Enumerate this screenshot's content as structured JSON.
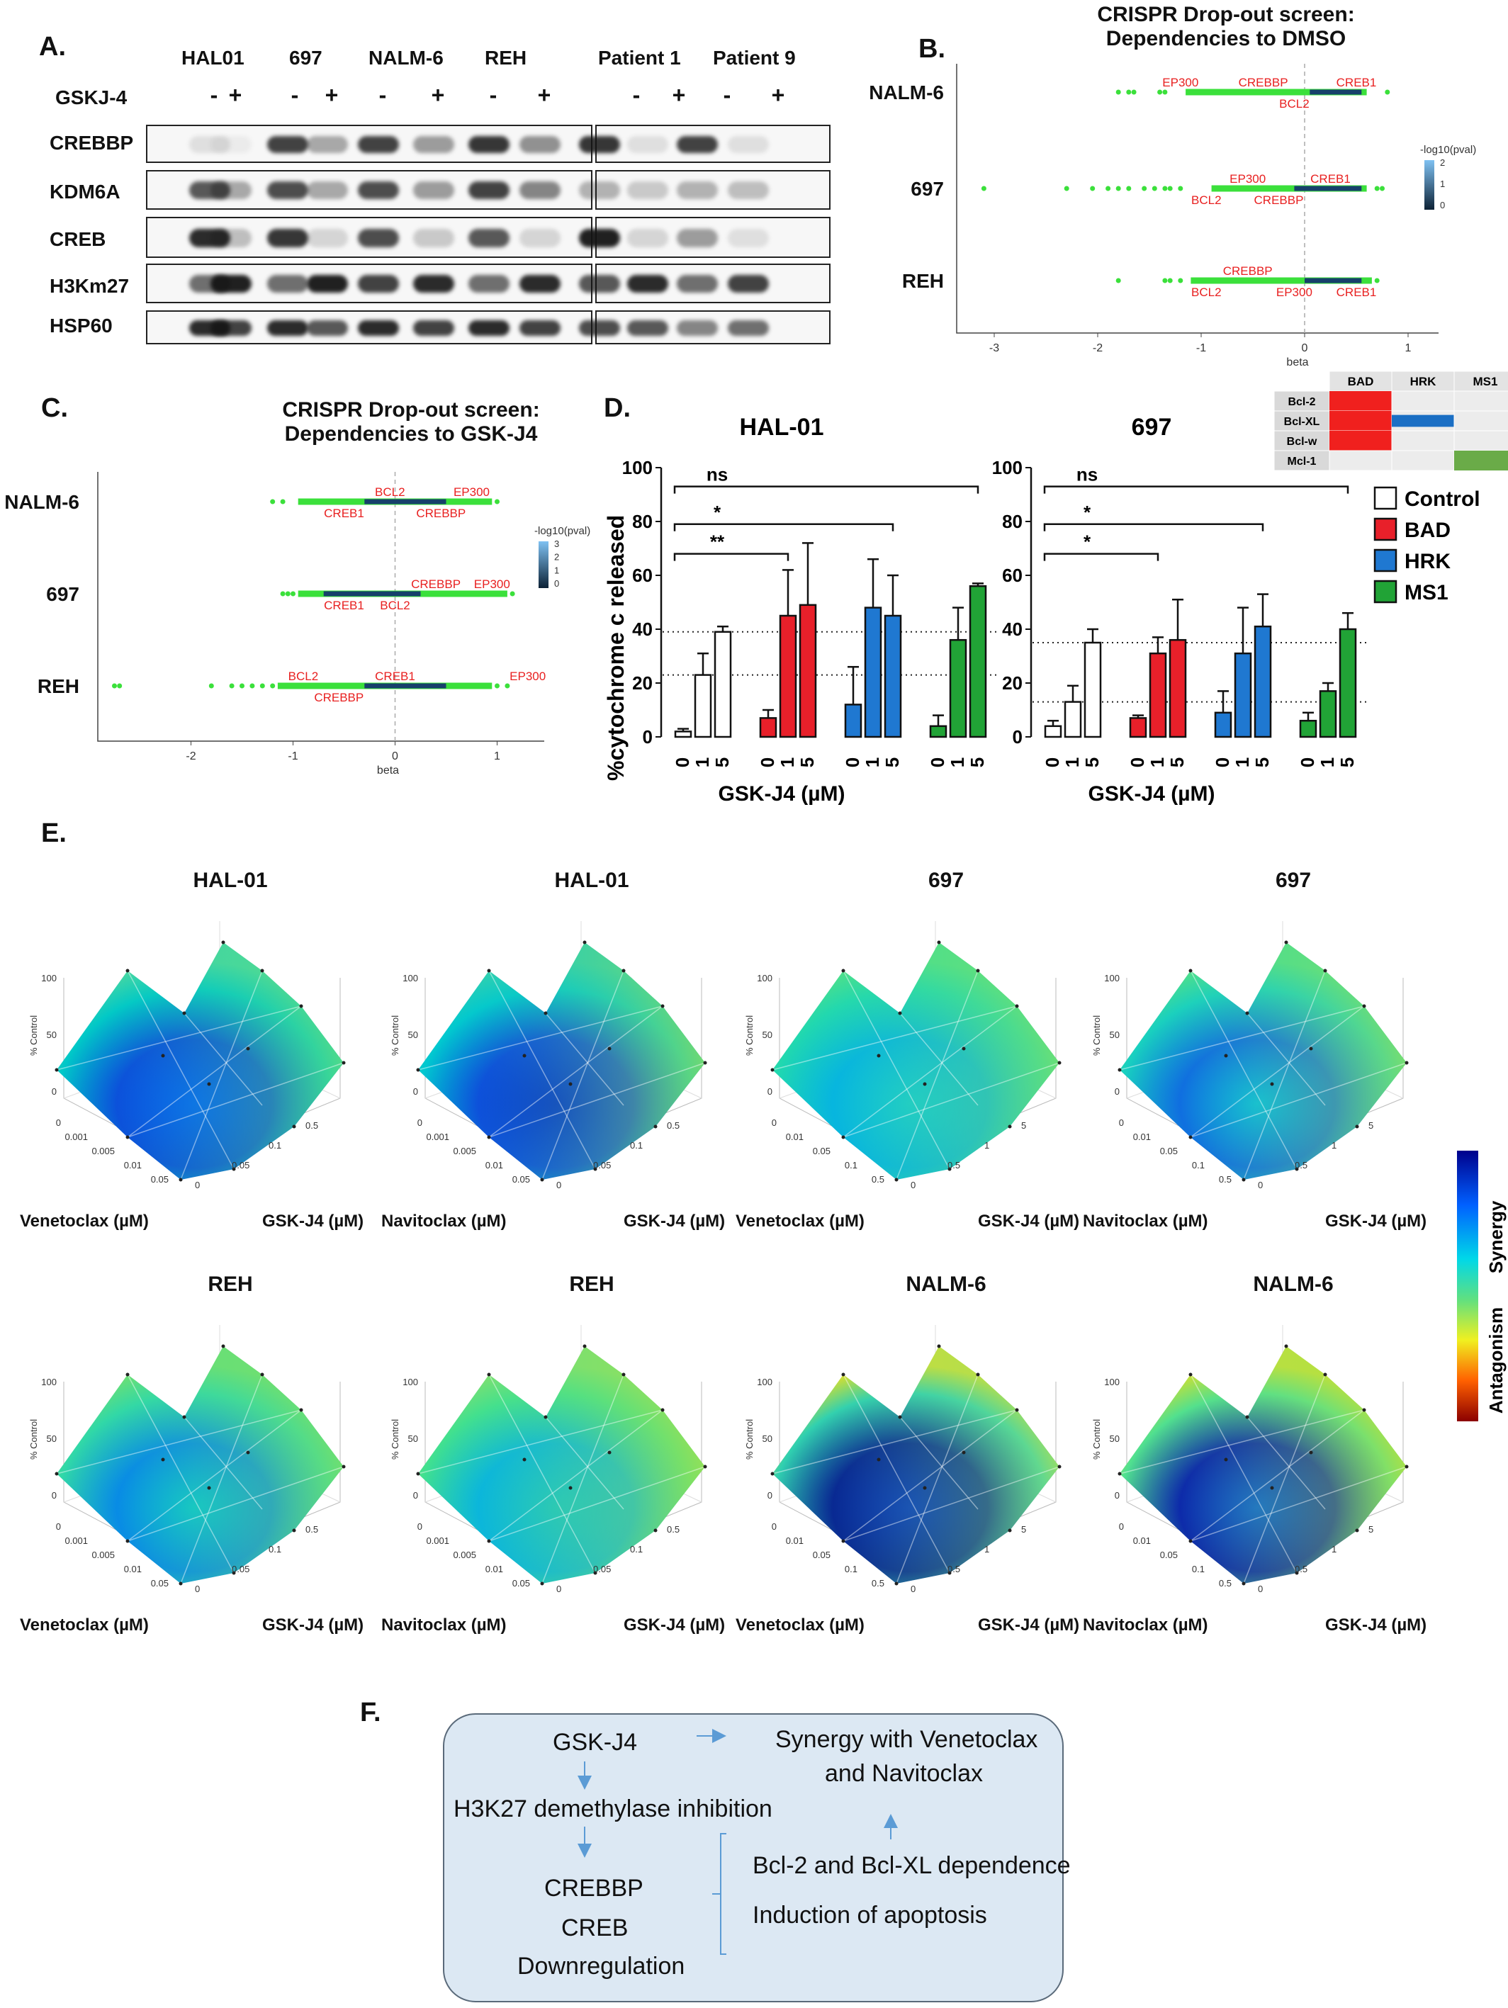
{
  "panels": {
    "A": "A.",
    "B": "B.",
    "C": "C.",
    "D": "D.",
    "E": "E.",
    "F": "F."
  },
  "panelA": {
    "lanes": [
      "HAL01",
      "697",
      "NALM-6",
      "REH",
      "Patient 1",
      "Patient 9"
    ],
    "treatment_label": "GSKJ-4",
    "signs": [
      "-",
      "+"
    ],
    "rows": [
      "CREBBP",
      "KDM6A",
      "CREB",
      "H3Km27",
      "HSP60"
    ]
  },
  "panelB": {
    "title_line1": "CRISPR Drop-out screen:",
    "title_line2": "Dependencies to DMSO",
    "rows": [
      {
        "name": "NALM-6",
        "genes": [
          "EP300",
          "CREBBP",
          "CREB1",
          "BCL2"
        ]
      },
      {
        "name": "697",
        "genes": [
          "EP300",
          "CREB1",
          "BCL2",
          "CREBBP"
        ]
      },
      {
        "name": "REH",
        "genes": [
          "CREBBP",
          "BCL2",
          "EP300",
          "CREB1"
        ]
      }
    ],
    "xlabel": "beta",
    "ticks": [
      "-3",
      "-2",
      "-1",
      "0",
      "1"
    ],
    "colorbar_label": "-log10(pval)",
    "colorbar_ticks": [
      "2",
      "1",
      "0"
    ]
  },
  "panelC": {
    "title_line1": "CRISPR Drop-out screen:",
    "title_line2": "Dependencies to GSK-J4",
    "rows": [
      {
        "name": "NALM-6",
        "genes": [
          "BCL2",
          "EP300",
          "CREB1",
          "CREBBP"
        ]
      },
      {
        "name": "697",
        "genes": [
          "CREBBP",
          "EP300",
          "CREB1",
          "BCL2"
        ]
      },
      {
        "name": "REH",
        "genes": [
          "BCL2",
          "CREB1",
          "EP300",
          "CREBBP"
        ]
      }
    ],
    "xlabel": "beta",
    "ticks": [
      "-2",
      "-1",
      "0",
      "1"
    ],
    "colorbar_label": "-log10(pval)",
    "colorbar_ticks": [
      "3",
      "2",
      "1",
      "0"
    ]
  },
  "panelD": {
    "ylabel": "%cytochrome c released",
    "xlabel": "GSK-J4 (µM)",
    "doses": [
      "0",
      "1",
      "5"
    ],
    "yticks": [
      "0",
      "20",
      "40",
      "60",
      "80",
      "100"
    ],
    "sig": [
      "ns",
      "*",
      "**"
    ],
    "sig697": [
      "ns",
      "*",
      "*"
    ],
    "legend": [
      {
        "name": "Control",
        "color": "#ffffff"
      },
      {
        "name": "BAD",
        "color": "#e8202a"
      },
      {
        "name": "HRK",
        "color": "#1f78d1"
      },
      {
        "name": "MS1",
        "color": "#21a336"
      }
    ],
    "matrix": {
      "cols": [
        "BAD",
        "HRK",
        "MS1"
      ],
      "rows": [
        "Bcl-2",
        "Bcl-XL",
        "Bcl-w",
        "Mcl-1"
      ]
    }
  },
  "chart_data": [
    {
      "type": "bar",
      "title": "HAL-01",
      "xlabel": "GSK-J4 (µM)",
      "ylabel": "%cytochrome c released",
      "ylim": [
        0,
        100
      ],
      "categories": [
        "0",
        "1",
        "5"
      ],
      "series": [
        {
          "name": "Control",
          "values": [
            2,
            23,
            39
          ],
          "errors": [
            1,
            8,
            2
          ]
        },
        {
          "name": "BAD",
          "values": [
            7,
            45,
            49
          ],
          "errors": [
            3,
            17,
            23
          ]
        },
        {
          "name": "HRK",
          "values": [
            12,
            48,
            45
          ],
          "errors": [
            14,
            18,
            15
          ]
        },
        {
          "name": "MS1",
          "values": [
            4,
            36,
            56
          ],
          "errors": [
            4,
            12,
            1
          ]
        }
      ],
      "reference_lines": [
        23,
        39
      ]
    },
    {
      "type": "bar",
      "title": "697",
      "xlabel": "GSK-J4 (µM)",
      "ylabel": "%cytochrome c released",
      "ylim": [
        0,
        100
      ],
      "categories": [
        "0",
        "1",
        "5"
      ],
      "series": [
        {
          "name": "Control",
          "values": [
            4,
            13,
            35
          ],
          "errors": [
            2,
            6,
            5
          ]
        },
        {
          "name": "BAD",
          "values": [
            7,
            31,
            36
          ],
          "errors": [
            1,
            6,
            15
          ]
        },
        {
          "name": "HRK",
          "values": [
            9,
            31,
            41
          ],
          "errors": [
            8,
            17,
            12
          ]
        },
        {
          "name": "MS1",
          "values": [
            6,
            17,
            40
          ],
          "errors": [
            3,
            3,
            6
          ]
        }
      ],
      "reference_lines": [
        13,
        35
      ]
    }
  ],
  "panelE": {
    "colorbar_top": "Synergy",
    "colorbar_bottom": "Antagonism",
    "zlabel": "% Control",
    "zticks": [
      "100",
      "50",
      "0"
    ],
    "surfaces": [
      {
        "title": "HAL-01",
        "xlabel": "Venetoclax (µM)",
        "ylabel": "GSK-J4 (µM)",
        "xt": [
          "0",
          "0.001",
          "0.005",
          "0.01",
          "0.05"
        ],
        "yt": [
          "0",
          "0.05",
          "0.1",
          "0.5"
        ]
      },
      {
        "title": "HAL-01",
        "xlabel": "Navitoclax (µM)",
        "ylabel": "GSK-J4 (µM)",
        "xt": [
          "0",
          "0.001",
          "0.005",
          "0.01",
          "0.05"
        ],
        "yt": [
          "0",
          "0.05",
          "0.1",
          "0.5"
        ]
      },
      {
        "title": "697",
        "xlabel": "Venetoclax (µM)",
        "ylabel": "GSK-J4 (µM)",
        "xt": [
          "0",
          "0.01",
          "0.05",
          "0.1",
          "0.5"
        ],
        "yt": [
          "0",
          "0.5",
          "1",
          "5"
        ]
      },
      {
        "title": "697",
        "xlabel": "Navitoclax (µM)",
        "ylabel": "GSK-J4 (µM)",
        "xt": [
          "0",
          "0.01",
          "0.05",
          "0.1",
          "0.5"
        ],
        "yt": [
          "0",
          "0.5",
          "1",
          "5"
        ]
      },
      {
        "title": "REH",
        "xlabel": "Venetoclax (µM)",
        "ylabel": "GSK-J4 (µM)",
        "xt": [
          "0",
          "0.001",
          "0.005",
          "0.01",
          "0.05"
        ],
        "yt": [
          "0",
          "0.05",
          "0.1",
          "0.5"
        ]
      },
      {
        "title": "REH",
        "xlabel": "Navitoclax (µM)",
        "ylabel": "GSK-J4 (µM)",
        "xt": [
          "0",
          "0.001",
          "0.005",
          "0.01",
          "0.05"
        ],
        "yt": [
          "0",
          "0.05",
          "0.1",
          "0.5"
        ]
      },
      {
        "title": "NALM-6",
        "xlabel": "Venetoclax (µM)",
        "ylabel": "GSK-J4 (µM)",
        "xt": [
          "0",
          "0.01",
          "0.05",
          "0.1",
          "0.5"
        ],
        "yt": [
          "0",
          "0.5",
          "1",
          "5"
        ]
      },
      {
        "title": "NALM-6",
        "xlabel": "Navitoclax (µM)",
        "ylabel": "GSK-J4 (µM)",
        "xt": [
          "0",
          "0.01",
          "0.05",
          "0.1",
          "0.5"
        ],
        "yt": [
          "0",
          "0.5",
          "1",
          "5"
        ]
      }
    ]
  },
  "panelF": {
    "gskj4": "GSK-J4",
    "inhibition": "H3K27 demethylase inhibition",
    "crebbp": "CREBBP",
    "creb": "CREB",
    "down": "Downregulation",
    "synergy1": "Synergy with Venetoclax",
    "synergy2": "and Navitoclax",
    "dependence": "Bcl-2 and Bcl-XL dependence",
    "apoptosis": "Induction of apoptosis"
  }
}
